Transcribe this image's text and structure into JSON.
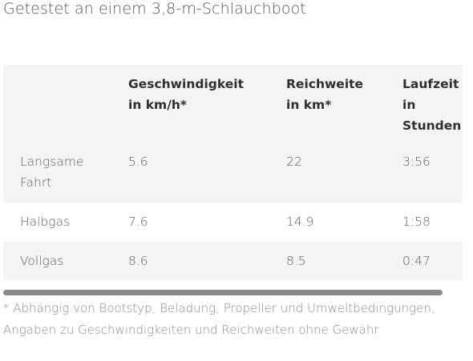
{
  "subtitle": "Getestet an einem 3,8-m-Schlauchboot",
  "table": {
    "headers": [
      "",
      "Geschwindigkeit in km/h*",
      "Reichweite in km*",
      "Laufzeit in Stunden"
    ],
    "header_lines": {
      "speed": [
        "Geschwindigkeit",
        "in km/h*"
      ],
      "range": [
        "Reichweite",
        "in km*"
      ],
      "runtime": [
        "Laufzeit",
        "in",
        "Stunden"
      ]
    },
    "rows": [
      {
        "label_lines": [
          "Langsame",
          "Fahrt"
        ],
        "speed": "5.6",
        "range": "22",
        "runtime": "3:56"
      },
      {
        "label_lines": [
          "Halbgas"
        ],
        "speed": "7.6",
        "range": "14.9",
        "runtime": "1:58"
      },
      {
        "label_lines": [
          "Vollgas"
        ],
        "speed": "8.6",
        "range": "8.5",
        "runtime": "0:47"
      }
    ]
  },
  "scrollbar": {
    "scroll_fraction": 0.0
  },
  "footnote": "* Abhängig von Bootstyp, Beladung, Propeller und Umweltbedingungen, Angaben zu Geschwindigkeiten und Reichweiten ohne Gewähr",
  "colors": {
    "row_shade": "#f4f4f4",
    "header_text": "#2e2e2e",
    "body_text": "#5d5d5d",
    "scrollbar": "#8a8a8a"
  }
}
